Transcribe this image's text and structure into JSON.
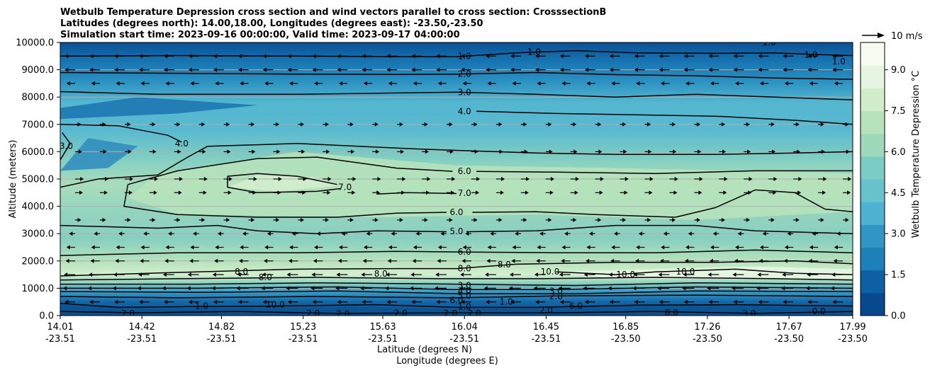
{
  "chart_data": {
    "type": "contour",
    "title_lines": [
      "Wetbulb Temperature Depression cross section and wind vectors parallel to cross section: CrosssectionB",
      "Latitudes (degrees north): 14.00,18.00, Longitudes (degrees east): -23.50,-23.50",
      "Simulation start time: 2023-09-16 00:00:00, Valid time: 2023-09-17 04:00:00"
    ],
    "ylabel": "Altitude (meters)",
    "xlabel_primary": "Latitude (degrees N)",
    "xlabel_secondary": "Longitude (degrees E)",
    "ylim": [
      0,
      10000
    ],
    "y_ticks": [
      "0.0",
      "1000.0",
      "2000.0",
      "3000.0",
      "4000.0",
      "5000.0",
      "6000.0",
      "7000.0",
      "8000.0",
      "9000.0",
      "10000.0"
    ],
    "x_ticks": [
      {
        "lat": "14.01",
        "lon": "-23.51"
      },
      {
        "lat": "14.42",
        "lon": "-23.51"
      },
      {
        "lat": "14.82",
        "lon": "-23.51"
      },
      {
        "lat": "15.23",
        "lon": "-23.51"
      },
      {
        "lat": "15.63",
        "lon": "-23.51"
      },
      {
        "lat": "16.04",
        "lon": "-23.51"
      },
      {
        "lat": "16.45",
        "lon": "-23.51"
      },
      {
        "lat": "16.85",
        "lon": "-23.50"
      },
      {
        "lat": "17.26",
        "lon": "-23.50"
      },
      {
        "lat": "17.67",
        "lon": "-23.50"
      },
      {
        "lat": "17.99",
        "lon": "-23.50"
      }
    ],
    "grid": "horizontal",
    "colorbar": {
      "label": "Wetbulb Temperature Depression °C",
      "ticks": [
        "0.0",
        "1.5",
        "3.0",
        "4.5",
        "6.0",
        "7.5",
        "9.0"
      ],
      "range": [
        0,
        10
      ],
      "colormap": [
        "#08488e",
        "#0b61a4",
        "#1e80b8",
        "#3196c4",
        "#4eb3d3",
        "#66c2cb",
        "#7bccc4",
        "#9ed9bb",
        "#b6e3bb",
        "#d1edcc",
        "#e6f5e1",
        "#f7fcf0"
      ]
    },
    "wind_key": {
      "label": "10 m/s"
    },
    "contour_labels": [
      {
        "text": "1.0",
        "lat": 16.04,
        "alt": 9500
      },
      {
        "text": "1.0",
        "lat": 16.39,
        "alt": 9650
      },
      {
        "text": "2.0",
        "lat": 16.04,
        "alt": 8850
      },
      {
        "text": "3.0",
        "lat": 16.04,
        "alt": 8180
      },
      {
        "text": "4.0",
        "lat": 16.04,
        "alt": 7480
      },
      {
        "text": "3.0",
        "lat": 14.04,
        "alt": 6200
      },
      {
        "text": "4.0",
        "lat": 14.62,
        "alt": 6300
      },
      {
        "text": "6.0",
        "lat": 16.04,
        "alt": 5280
      },
      {
        "text": "7.0",
        "lat": 15.44,
        "alt": 4700
      },
      {
        "text": "7.0",
        "lat": 16.04,
        "alt": 4480
      },
      {
        "text": "6.0",
        "lat": 16.0,
        "alt": 3780
      },
      {
        "text": "5.0",
        "lat": 16.0,
        "alt": 3080
      },
      {
        "text": "6.0",
        "lat": 16.04,
        "alt": 2330
      },
      {
        "text": "8.0",
        "lat": 16.04,
        "alt": 1720
      },
      {
        "text": "8.0",
        "lat": 16.24,
        "alt": 1870
      },
      {
        "text": "10.0",
        "lat": 16.47,
        "alt": 1600
      },
      {
        "text": "10.0",
        "lat": 16.85,
        "alt": 1500
      },
      {
        "text": "10.0",
        "lat": 17.15,
        "alt": 1600
      },
      {
        "text": "8.0",
        "lat": 14.92,
        "alt": 1600
      },
      {
        "text": "8.0",
        "lat": 15.04,
        "alt": 1400
      },
      {
        "text": "8.0",
        "lat": 15.62,
        "alt": 1530
      },
      {
        "text": "1.0",
        "lat": 14.72,
        "alt": 350
      },
      {
        "text": "2.0",
        "lat": 14.35,
        "alt": 80
      },
      {
        "text": "2.0",
        "lat": 15.28,
        "alt": 80
      },
      {
        "text": "2.0",
        "lat": 15.43,
        "alt": 60
      },
      {
        "text": "2.0",
        "lat": 15.72,
        "alt": 80
      },
      {
        "text": "2.0",
        "lat": 15.97,
        "alt": 80
      },
      {
        "text": "3.0",
        "lat": 16.04,
        "alt": 1100
      },
      {
        "text": "4.0",
        "lat": 16.04,
        "alt": 900
      },
      {
        "text": "5.0",
        "lat": 16.04,
        "alt": 720
      },
      {
        "text": "6.0",
        "lat": 16.0,
        "alt": 560
      },
      {
        "text": "1.0",
        "lat": 16.04,
        "alt": 320
      },
      {
        "text": "2.0",
        "lat": 16.09,
        "alt": 80
      },
      {
        "text": "1.0",
        "lat": 16.25,
        "alt": 500
      },
      {
        "text": "2.0",
        "lat": 16.5,
        "alt": 700
      },
      {
        "text": "2.0",
        "lat": 16.45,
        "alt": 200
      },
      {
        "text": "6.0",
        "lat": 16.6,
        "alt": 350
      },
      {
        "text": "3.0",
        "lat": 16.5,
        "alt": 900
      },
      {
        "text": "8.0",
        "lat": 17.08,
        "alt": 100
      },
      {
        "text": "3.0",
        "lat": 17.47,
        "alt": 80
      },
      {
        "text": "0.0",
        "lat": 17.82,
        "alt": 150
      },
      {
        "text": "10.0",
        "lat": 15.09,
        "alt": 400
      },
      {
        "text": "1.0",
        "lat": 17.57,
        "alt": 10000
      },
      {
        "text": "1.0",
        "lat": 17.78,
        "alt": 9550
      },
      {
        "text": "1.0",
        "lat": 17.92,
        "alt": 9300
      }
    ],
    "contour_lines": [
      {
        "level": "1.0",
        "points": [
          [
            14.01,
            9500
          ],
          [
            14.6,
            9520
          ],
          [
            15.2,
            9500
          ],
          [
            15.7,
            9480
          ],
          [
            16.0,
            9480
          ],
          [
            16.3,
            9620
          ],
          [
            16.6,
            9700
          ],
          [
            16.9,
            9620
          ],
          [
            17.3,
            9600
          ],
          [
            17.6,
            9620
          ],
          [
            17.8,
            9560
          ],
          [
            17.99,
            9520
          ]
        ]
      },
      {
        "level": "2.0",
        "points": [
          [
            14.01,
            8900
          ],
          [
            14.6,
            8870
          ],
          [
            15.2,
            8840
          ],
          [
            15.7,
            8830
          ],
          [
            16.0,
            8840
          ],
          [
            16.4,
            8900
          ],
          [
            16.8,
            8820
          ],
          [
            17.2,
            8780
          ],
          [
            17.6,
            8700
          ],
          [
            17.99,
            8650
          ]
        ]
      },
      {
        "level": "3.0",
        "points": [
          [
            14.01,
            8200
          ],
          [
            14.5,
            8100
          ],
          [
            15.2,
            8100
          ],
          [
            15.7,
            8150
          ],
          [
            16.0,
            8180
          ],
          [
            16.4,
            8100
          ],
          [
            16.8,
            8000
          ],
          [
            17.2,
            8100
          ],
          [
            17.6,
            8000
          ],
          [
            17.99,
            7900
          ]
        ]
      },
      {
        "level": "4.0",
        "points": [
          [
            16.1,
            7480
          ],
          [
            16.5,
            7400
          ],
          [
            16.9,
            7350
          ],
          [
            17.3,
            7300
          ],
          [
            17.7,
            7150
          ],
          [
            17.99,
            7000
          ]
        ]
      },
      {
        "level": "4.0",
        "points": [
          [
            14.01,
            7000
          ],
          [
            14.3,
            6950
          ],
          [
            14.55,
            6600
          ],
          [
            14.62,
            6350
          ]
        ]
      },
      {
        "level": "3.0",
        "points": [
          [
            14.01,
            5700
          ],
          [
            14.06,
            6300
          ],
          [
            14.02,
            6700
          ]
        ]
      },
      {
        "level": "4.0",
        "points": [
          [
            14.01,
            4700
          ],
          [
            14.2,
            5000
          ],
          [
            14.5,
            5150
          ],
          [
            14.65,
            5800
          ],
          [
            14.75,
            6200
          ],
          [
            15.2,
            6300
          ],
          [
            15.8,
            6100
          ],
          [
            16.0,
            6050
          ],
          [
            16.4,
            5950
          ],
          [
            16.8,
            5900
          ],
          [
            17.3,
            5900
          ],
          [
            17.7,
            5950
          ],
          [
            17.99,
            6000
          ]
        ]
      },
      {
        "level": "6.0",
        "points": [
          [
            16.1,
            5280
          ],
          [
            16.5,
            5250
          ],
          [
            17.0,
            5200
          ],
          [
            17.5,
            5300
          ],
          [
            17.99,
            5300
          ]
        ]
      },
      {
        "level": "6.0",
        "points": [
          [
            15.98,
            5280
          ],
          [
            15.7,
            5400
          ],
          [
            15.3,
            5800
          ],
          [
            15.0,
            5750
          ],
          [
            14.6,
            5300
          ],
          [
            14.35,
            4800
          ],
          [
            14.33,
            4000
          ],
          [
            14.6,
            3700
          ],
          [
            15.0,
            3600
          ],
          [
            15.4,
            3600
          ],
          [
            15.7,
            3750
          ],
          [
            15.95,
            3780
          ]
        ]
      },
      {
        "level": "7.0",
        "points": [
          [
            15.4,
            4800
          ],
          [
            15.2,
            5100
          ],
          [
            15.0,
            5200
          ],
          [
            14.85,
            5100
          ],
          [
            14.85,
            4700
          ],
          [
            15.0,
            4500
          ],
          [
            15.3,
            4550
          ],
          [
            15.42,
            4650
          ]
        ]
      },
      {
        "level": "7.0",
        "points": [
          [
            15.6,
            4450
          ],
          [
            15.75,
            4500
          ],
          [
            16.0,
            4470
          ]
        ]
      },
      {
        "level": "6.0",
        "points": [
          [
            16.08,
            3780
          ],
          [
            16.4,
            3800
          ],
          [
            16.7,
            3700
          ],
          [
            17.1,
            3600
          ],
          [
            17.3,
            3950
          ],
          [
            17.5,
            4600
          ],
          [
            17.7,
            4500
          ],
          [
            17.85,
            3900
          ],
          [
            17.99,
            3800
          ]
        ]
      },
      {
        "level": "5.0",
        "points": [
          [
            14.01,
            3300
          ],
          [
            14.5,
            3200
          ],
          [
            14.8,
            3300
          ],
          [
            15.0,
            3100
          ],
          [
            15.3,
            3000
          ],
          [
            15.6,
            3100
          ],
          [
            15.95,
            3070
          ]
        ]
      },
      {
        "level": "5.0",
        "points": [
          [
            16.05,
            3070
          ],
          [
            16.4,
            3100
          ],
          [
            16.8,
            3300
          ],
          [
            17.2,
            3300
          ],
          [
            17.5,
            3100
          ],
          [
            17.99,
            3000
          ]
        ]
      },
      {
        "level": "6.0",
        "points": [
          [
            14.01,
            2200
          ],
          [
            14.6,
            2300
          ],
          [
            15.2,
            2300
          ],
          [
            15.7,
            2350
          ],
          [
            16.0,
            2330
          ],
          [
            16.5,
            2300
          ],
          [
            17.0,
            2300
          ],
          [
            17.5,
            2400
          ],
          [
            17.99,
            2300
          ]
        ]
      },
      {
        "level": "8.0",
        "points": [
          [
            14.01,
            1450
          ],
          [
            14.7,
            1600
          ],
          [
            15.2,
            1700
          ],
          [
            15.7,
            1720
          ],
          [
            16.0,
            1720
          ],
          [
            16.3,
            1880
          ],
          [
            16.8,
            1950
          ],
          [
            17.3,
            1950
          ],
          [
            17.7,
            2000
          ],
          [
            17.99,
            1900
          ]
        ]
      },
      {
        "level": "10.0",
        "points": [
          [
            16.5,
            1600
          ],
          [
            16.8,
            1500
          ],
          [
            17.0,
            1600
          ],
          [
            17.4,
            1700
          ],
          [
            17.7,
            1550
          ],
          [
            17.99,
            1500
          ]
        ]
      },
      {
        "level": "9.0",
        "points": [
          [
            14.01,
            1300
          ],
          [
            14.6,
            1350
          ],
          [
            15.3,
            1400
          ],
          [
            15.9,
            1350
          ],
          [
            16.4,
            1350
          ],
          [
            17.0,
            1400
          ],
          [
            17.6,
            1350
          ],
          [
            17.99,
            1300
          ]
        ]
      },
      {
        "level": "7.0",
        "points": [
          [
            14.01,
            1150
          ],
          [
            14.7,
            1150
          ],
          [
            15.3,
            1200
          ],
          [
            16.0,
            1150
          ],
          [
            16.6,
            1100
          ],
          [
            17.2,
            1200
          ],
          [
            17.99,
            1150
          ]
        ]
      },
      {
        "level": "5.0",
        "points": [
          [
            14.01,
            1000
          ],
          [
            14.7,
            1000
          ],
          [
            15.4,
            1050
          ],
          [
            16.0,
            950
          ],
          [
            16.5,
            950
          ],
          [
            17.2,
            1050
          ],
          [
            17.99,
            1000
          ]
        ]
      },
      {
        "level": "3.0",
        "points": [
          [
            14.01,
            880
          ],
          [
            14.7,
            850
          ],
          [
            15.4,
            900
          ],
          [
            16.0,
            800
          ],
          [
            16.6,
            800
          ],
          [
            17.2,
            900
          ],
          [
            17.99,
            880
          ]
        ]
      },
      {
        "level": "2.0",
        "points": [
          [
            14.01,
            700
          ],
          [
            14.6,
            650
          ],
          [
            15.3,
            700
          ],
          [
            16.0,
            650
          ],
          [
            16.5,
            720
          ],
          [
            17.2,
            750
          ],
          [
            17.99,
            700
          ]
        ]
      },
      {
        "level": "1.0",
        "points": [
          [
            14.01,
            450
          ],
          [
            14.3,
            300
          ],
          [
            14.7,
            330
          ],
          [
            15.1,
            350
          ],
          [
            15.6,
            400
          ],
          [
            16.0,
            300
          ],
          [
            16.4,
            300
          ],
          [
            16.9,
            380
          ],
          [
            17.4,
            400
          ],
          [
            17.99,
            350
          ]
        ]
      },
      {
        "level": "2.0",
        "points": [
          [
            14.01,
            150
          ],
          [
            14.4,
            100
          ],
          [
            14.9,
            150
          ],
          [
            15.4,
            80
          ],
          [
            16.0,
            100
          ],
          [
            16.5,
            100
          ],
          [
            17.0,
            150
          ],
          [
            17.5,
            80
          ],
          [
            17.99,
            150
          ]
        ]
      }
    ],
    "wind_vectors": [
      {
        "alt": 9500,
        "dir": -1,
        "mag": 0.8
      },
      {
        "alt": 9000,
        "dir": -1,
        "mag": 0.8
      },
      {
        "alt": 8500,
        "dir": -1,
        "mag": 0.6
      },
      {
        "alt": 7000,
        "dir": 1,
        "mag": 0.3
      },
      {
        "alt": 6000,
        "dir": 1,
        "mag": 0.4
      },
      {
        "alt": 5000,
        "dir": 1,
        "mag": 0.6
      },
      {
        "alt": 4500,
        "dir": 1,
        "mag": 0.5
      },
      {
        "alt": 3500,
        "dir": 1,
        "mag": 0.3
      },
      {
        "alt": 3000,
        "dir": -1,
        "mag": 0.3
      },
      {
        "alt": 2500,
        "dir": -1,
        "mag": 0.6
      },
      {
        "alt": 2000,
        "dir": -1,
        "mag": 0.7
      },
      {
        "alt": 1500,
        "dir": -1,
        "mag": 0.9
      },
      {
        "alt": 1000,
        "dir": -1,
        "mag": 1.0
      },
      {
        "alt": 500,
        "dir": -1,
        "mag": 0.8
      }
    ]
  }
}
